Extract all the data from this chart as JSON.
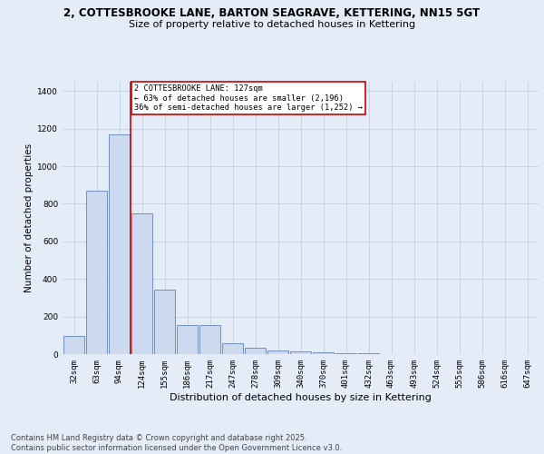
{
  "title1": "2, COTTESBROOKE LANE, BARTON SEAGRAVE, KETTERING, NN15 5GT",
  "title2": "Size of property relative to detached houses in Kettering",
  "xlabel": "Distribution of detached houses by size in Kettering",
  "ylabel": "Number of detached properties",
  "categories": [
    "32sqm",
    "63sqm",
    "94sqm",
    "124sqm",
    "155sqm",
    "186sqm",
    "217sqm",
    "247sqm",
    "278sqm",
    "309sqm",
    "340sqm",
    "370sqm",
    "401sqm",
    "432sqm",
    "463sqm",
    "493sqm",
    "524sqm",
    "555sqm",
    "586sqm",
    "616sqm",
    "647sqm"
  ],
  "values": [
    95,
    870,
    1170,
    750,
    345,
    155,
    155,
    60,
    35,
    20,
    15,
    10,
    5,
    5,
    2,
    0,
    0,
    0,
    0,
    0,
    0
  ],
  "bar_color": "#ccd9ee",
  "bar_edge_color": "#7090c0",
  "vline_position": 2.5,
  "vline_color": "#cc0000",
  "annotation_title": "2 COTTESBROOKE LANE: 127sqm",
  "annotation_line1": "← 63% of detached houses are smaller (2,196)",
  "annotation_line2": "36% of semi-detached houses are larger (1,252) →",
  "annotation_box_facecolor": "#ffffff",
  "annotation_box_edgecolor": "#cc0000",
  "grid_color": "#c8d4e4",
  "background_color": "#e4ecf8",
  "footer1": "Contains HM Land Registry data © Crown copyright and database right 2025.",
  "footer2": "Contains public sector information licensed under the Open Government Licence v3.0.",
  "ylim": [
    0,
    1450
  ],
  "yticks": [
    0,
    200,
    400,
    600,
    800,
    1000,
    1200,
    1400
  ],
  "title1_fontsize": 8.5,
  "title2_fontsize": 8.0,
  "xlabel_fontsize": 8.0,
  "ylabel_fontsize": 7.5,
  "tick_fontsize": 6.5,
  "footer_fontsize": 6.0
}
